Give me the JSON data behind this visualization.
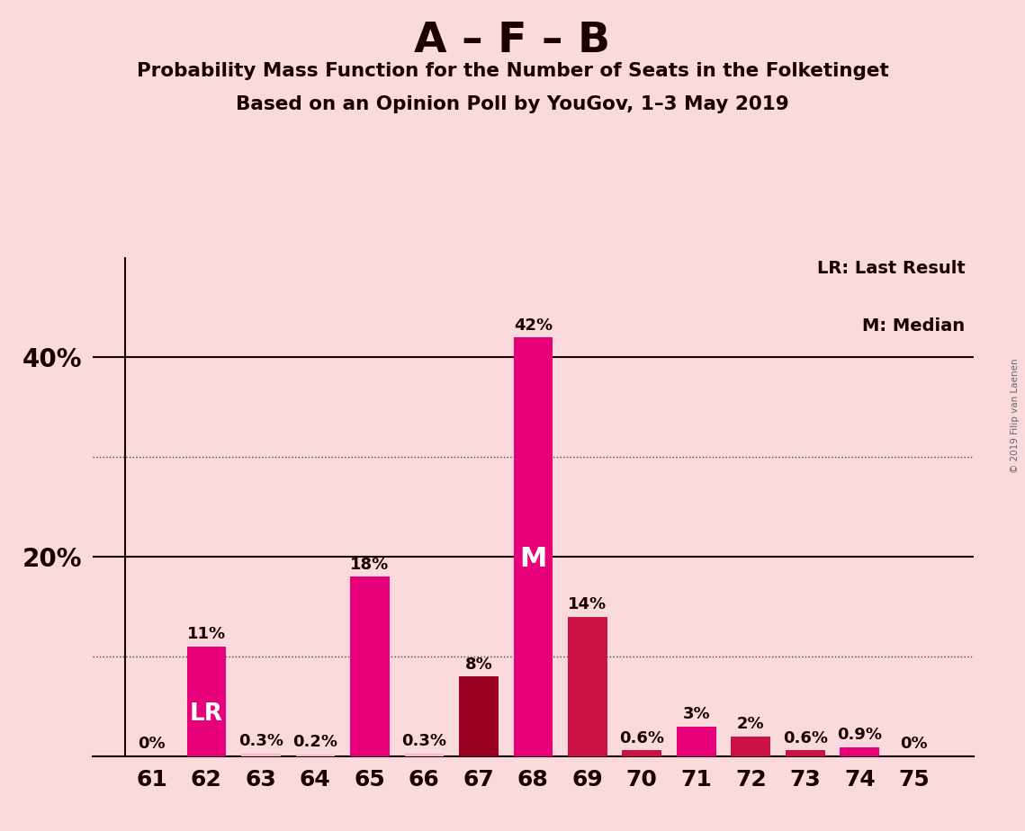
{
  "title_main": "A – F – B",
  "title_sub1": "Probability Mass Function for the Number of Seats in the Folketinget",
  "title_sub2": "Based on an Opinion Poll by YouGov, 1–3 May 2019",
  "watermark": "© 2019 Filip van Laenen",
  "categories": [
    61,
    62,
    63,
    64,
    65,
    66,
    67,
    68,
    69,
    70,
    71,
    72,
    73,
    74,
    75
  ],
  "values": [
    0.0,
    11.0,
    0.3,
    0.2,
    18.0,
    0.3,
    8.0,
    42.0,
    14.0,
    0.6,
    3.0,
    2.0,
    0.6,
    0.9,
    0.0
  ],
  "bar_colors": [
    "#f4b8cc",
    "#e8007a",
    "#f4b8cc",
    "#f4b8cc",
    "#e8007a",
    "#f4b8cc",
    "#990022",
    "#e8007a",
    "#cc1144",
    "#cc1144",
    "#e8007a",
    "#cc1144",
    "#cc1144",
    "#e8007a",
    "#f4b8cc"
  ],
  "median_seat": 68,
  "lr_seat": 62,
  "background_color": "#fadadd",
  "ylim": [
    0,
    50
  ],
  "legend_lr": "LR: Last Result",
  "legend_m": "M: Median",
  "dotted_lines": [
    10,
    30
  ],
  "solid_lines": [
    20,
    40
  ],
  "label_values": [
    "0%",
    "11%",
    "0.3%",
    "0.2%",
    "18%",
    "0.3%",
    "8%",
    "42%",
    "14%",
    "0.6%",
    "3%",
    "2%",
    "0.6%",
    "0.9%",
    "0%"
  ]
}
